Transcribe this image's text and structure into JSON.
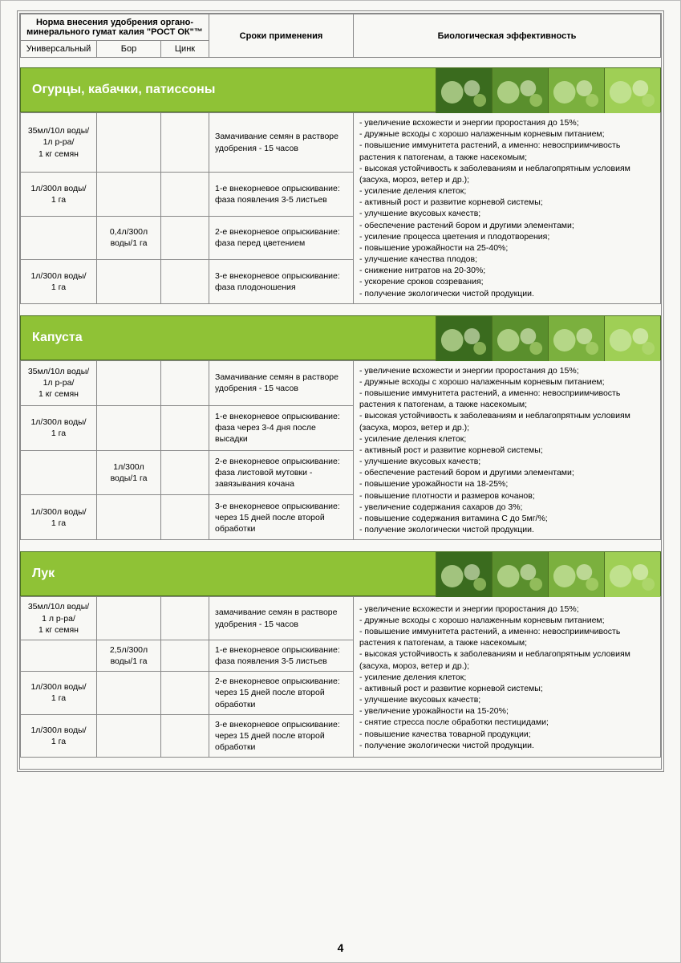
{
  "colors": {
    "section_bg": "#8fc236",
    "section_border": "#4a7020",
    "table_border": "#888888",
    "page_bg": "#f8f8f5"
  },
  "header": {
    "norma_line1": "Норма внесения удобрения органо-",
    "norma_line2": "минерального гумат калия \"РОСТ ОК\"™",
    "col_universal": "Универсальный",
    "col_bor": "Бор",
    "col_zinc": "Цинк",
    "col_timing": "Сроки применения",
    "col_bio": "Биологическая эффективность"
  },
  "page_number": "4",
  "sections": [
    {
      "title": "Огурцы, кабачки, патиссоны",
      "img_count": 4,
      "rows": [
        {
          "universal": "35мл/10л воды/\n1л р-ра/\n1 кг семян",
          "bor": "",
          "zinc": "",
          "timing": "Замачивание семян в растворе удобрения - 15 часов"
        },
        {
          "universal": "1л/300л воды/\n1 га",
          "bor": "",
          "zinc": "",
          "timing": "1-е внекорневое опрыскивание: фаза появления 3-5 листьев"
        },
        {
          "universal": "",
          "bor": "0,4л/300л воды/1 га",
          "zinc": "",
          "timing": "2-е внекорневое опрыскивание: фаза перед цветением"
        },
        {
          "universal": "1л/300л воды/\n1 га",
          "bor": "",
          "zinc": "",
          "timing": "3-е внекорневое опрыскивание: фаза плодоношения"
        }
      ],
      "bio": "- увеличение всхожести и энергии проростания до 15%;\n- дружные всходы с хорошо налаженным корневым питанием;\n- повышение иммунитета растений, а именно: невосприимчивость растения к патогенам, а также насекомым;\n- высокая устойчивость к заболеваниям и неблагопрятным условиям (засуха, мороз, ветер и др.);\n- усиление деления клеток;\n- активный рост и развитие корневой системы;\n- улучшение вкусовых качеств;\n- обеспечение растений бором и другими элементами;\n- усиление процесса цветения и плодотворения;\n- повышение урожайности на  25-40%;\n- улучшение качества плодов;\n- снижение нитратов на 20-30%;\n- ускорение сроков созревания;\n- получение экологически чистой продукции."
    },
    {
      "title": "Капуста",
      "img_count": 4,
      "rows": [
        {
          "universal": "35мл/10л воды/\n1л р-ра/\n1 кг семян",
          "bor": "",
          "zinc": "",
          "timing": "Замачивание семян в растворе удобрения - 15 часов"
        },
        {
          "universal": "1л/300л воды/\n1 га",
          "bor": "",
          "zinc": "",
          "timing": "1-е внекорневое опрыскивание: фаза через 3-4 дня после высадки"
        },
        {
          "universal": "",
          "bor": "1л/300л воды/1 га",
          "zinc": "",
          "timing": "2-е внекорневое опрыскивание: фаза листовой мутовки - завязывания кочана"
        },
        {
          "universal": "1л/300л воды/\n1 га",
          "bor": "",
          "zinc": "",
          "timing": "3-е внекорневое опрыскивание: через 15 дней после второй обработки"
        }
      ],
      "bio": "- увеличение всхожести и энергии проростания до 15%;\n- дружные всходы с хорошо налаженным корневым питанием;\n- повышение иммунитета растений, а именно: невосприимчивость растения к патогенам, а также насекомым;\n- высокая устойчивость к заболеваниям и неблагопрятным условиям (засуха, мороз, ветер и др.);\n- усиление деления клеток;\n- активный рост и развитие корневой системы;\n- улучшение вкусовых качеств;\n- обеспечение растений бором и другими элементами;\n- повышение урожайности на 18-25%;\n- повышение плотности и размеров кочанов;\n- увеличение содержания сахаров до 3%;\n- повышение содержания витамина С до 5мг/%;\n- получение экологически чистой продукции."
    },
    {
      "title": "Лук",
      "img_count": 4,
      "rows": [
        {
          "universal": "35мл/10л воды/\n1 л р-ра/\n1 кг семян",
          "bor": "",
          "zinc": "",
          "timing": "замачивание семян в растворе удобрения - 15 часов"
        },
        {
          "universal": "",
          "bor": "2,5л/300л воды/1 га",
          "zinc": "",
          "timing": "1-е внекорневое опрыскивание: фаза появления 3-5 листьев"
        },
        {
          "universal": "1л/300л воды/\n1 га",
          "bor": "",
          "zinc": "",
          "timing": "2-е внекорневое опрыскивание: через 15 дней после второй обработки"
        },
        {
          "universal": "1л/300л воды/\n1 га",
          "bor": "",
          "zinc": "",
          "timing": "3-е внекорневое опрыскивание: через 15 дней после второй обработки"
        }
      ],
      "bio": "- увеличение всхожести и энергии проростания до 15%;\n- дружные всходы с хорошо налаженным корневым питанием;\n- повышение иммунитета растений, а именно: невосприимчивость растения к патогенам, а также насекомым;\n- высокая устойчивость к заболеваниям и неблагопрятным условиям (засуха, мороз, ветер и др.);\n- усиление деления клеток;\n- активный рост и развитие корневой системы;\n- улучшение вкусовых качеств;\n- увеличение урожайности на 15-20%;\n- снятие стресса после обработки пестицидами;\n- повышение качества товарной продукции;\n- получение экологически чистой продукции."
    }
  ]
}
